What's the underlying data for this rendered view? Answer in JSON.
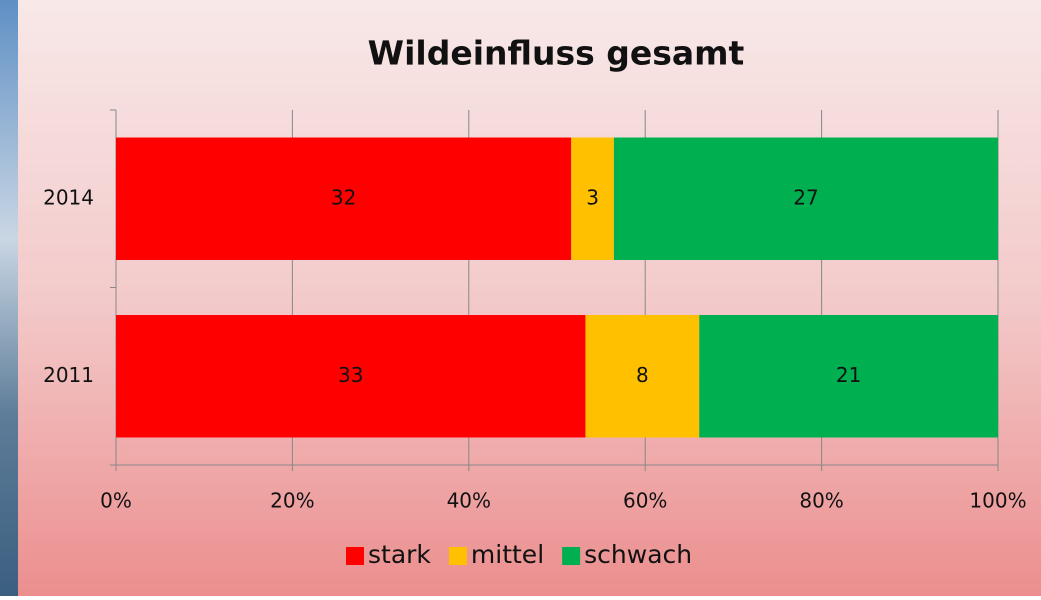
{
  "chart_data": {
    "type": "bar",
    "orientation": "horizontal",
    "stack": "percent",
    "title": "Wildeinfluss gesamt",
    "categories": [
      "2014",
      "2011"
    ],
    "series": [
      {
        "name": "stark",
        "color": "#ff0000",
        "values": [
          32,
          33
        ]
      },
      {
        "name": "mittel",
        "color": "#ffc000",
        "values": [
          3,
          8
        ]
      },
      {
        "name": "schwach",
        "color": "#00b050",
        "values": [
          27,
          21
        ]
      }
    ],
    "xlim": [
      0,
      100
    ],
    "xticks": [
      {
        "value": 0,
        "label": "0%"
      },
      {
        "value": 20,
        "label": "20%"
      },
      {
        "value": 40,
        "label": "40%"
      },
      {
        "value": 60,
        "label": "60%"
      },
      {
        "value": 80,
        "label": "80%"
      },
      {
        "value": 100,
        "label": "100%"
      }
    ],
    "grid": true,
    "legend": "bottom"
  }
}
